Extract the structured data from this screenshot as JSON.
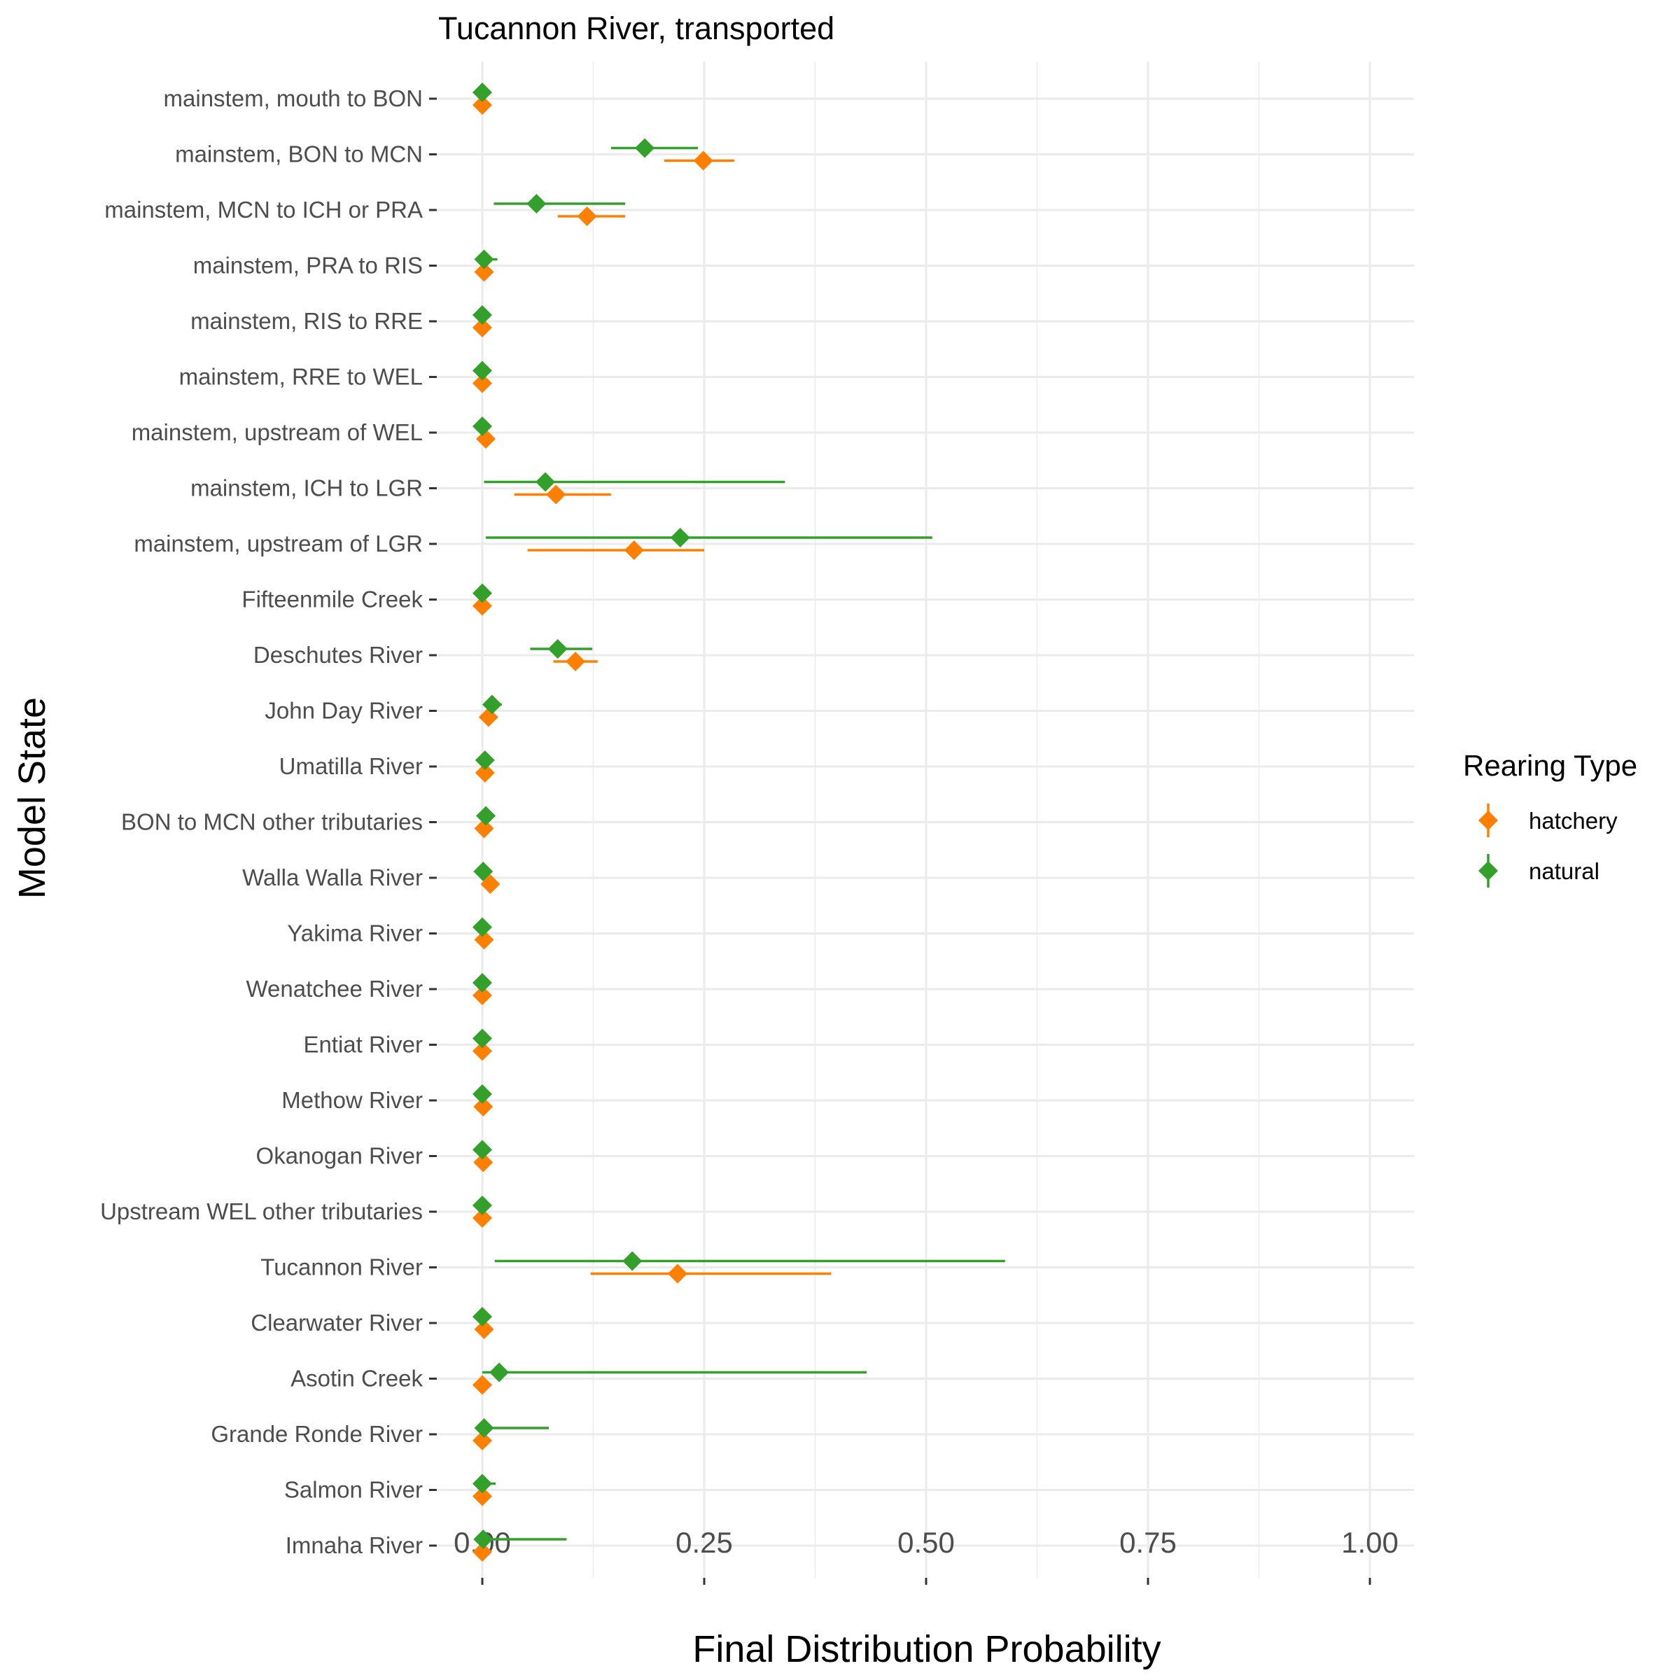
{
  "chart_data": {
    "type": "scatter",
    "title": "Tucannon River, transported",
    "xlabel": "Final Distribution Probability",
    "ylabel": "Model State",
    "xlim": [
      -0.05,
      1.05
    ],
    "x_ticks": [
      0,
      0.25,
      0.5,
      0.75,
      1
    ],
    "x_tick_labels": [
      "0.00",
      "0.25",
      "0.50",
      "0.75",
      "1.00"
    ],
    "grid": true,
    "legend": {
      "title": "Rearing Type",
      "position": "right"
    },
    "categories": [
      "mainstem, mouth to BON",
      "mainstem, BON to MCN",
      "mainstem, MCN to ICH or PRA",
      "mainstem, PRA to RIS",
      "mainstem, RIS to RRE",
      "mainstem, RRE to WEL",
      "mainstem, upstream of WEL",
      "mainstem, ICH to LGR",
      "mainstem, upstream of LGR",
      "Fifteenmile Creek",
      "Deschutes River",
      "John Day River",
      "Umatilla River",
      "BON to MCN other tributaries",
      "Walla Walla River",
      "Yakima River",
      "Wenatchee River",
      "Entiat River",
      "Methow River",
      "Okanogan River",
      "Upstream WEL other tributaries",
      "Tucannon River",
      "Clearwater River",
      "Asotin Creek",
      "Grande Ronde River",
      "Salmon River",
      "Imnaha River"
    ],
    "series": [
      {
        "name": "hatchery",
        "color": "#ff7f00",
        "values": [
          0.0,
          0.249,
          0.118,
          0.002,
          0.0,
          0.0,
          0.004,
          0.083,
          0.171,
          0.0,
          0.105,
          0.007,
          0.003,
          0.002,
          0.009,
          0.002,
          0.0,
          0.0,
          0.001,
          0.001,
          0.0,
          0.22,
          0.002,
          0.0,
          0.0,
          0.0,
          0.0
        ],
        "lower": [
          0.0,
          0.205,
          0.085,
          0.0,
          0.0,
          0.0,
          0.0,
          0.036,
          0.051,
          0.0,
          0.08,
          0.0,
          0.0,
          0.0,
          0.0,
          0.0,
          0.0,
          0.0,
          0.0,
          0.0,
          0.0,
          0.122,
          0.0,
          0.0,
          0.0,
          0.0,
          0.0
        ],
        "upper": [
          0.0,
          0.284,
          0.161,
          0.005,
          0.0,
          0.0,
          0.008,
          0.145,
          0.25,
          0.0,
          0.13,
          0.014,
          0.006,
          0.005,
          0.016,
          0.004,
          0.0,
          0.0,
          0.002,
          0.002,
          0.0,
          0.393,
          0.004,
          0.0,
          0.0,
          0.0,
          0.0
        ]
      },
      {
        "name": "natural",
        "color": "#33a02c",
        "values": [
          0.0,
          0.183,
          0.061,
          0.002,
          0.0,
          0.0,
          0.0,
          0.071,
          0.223,
          0.0,
          0.085,
          0.011,
          0.003,
          0.004,
          0.001,
          0.0,
          0.0,
          0.0,
          0.0,
          0.0,
          0.0,
          0.169,
          0.0,
          0.019,
          0.002,
          0.0,
          0.001
        ],
        "lower": [
          0.0,
          0.145,
          0.013,
          0.0,
          0.0,
          0.0,
          0.0,
          0.002,
          0.004,
          0.0,
          0.054,
          0.002,
          0.0,
          0.0,
          0.0,
          0.0,
          0.0,
          0.0,
          0.0,
          0.0,
          0.0,
          0.014,
          0.0,
          0.0,
          0.0,
          0.0,
          0.0
        ],
        "upper": [
          0.0,
          0.243,
          0.161,
          0.017,
          0.0,
          0.0,
          0.0,
          0.341,
          0.507,
          0.0,
          0.124,
          0.022,
          0.007,
          0.01,
          0.003,
          0.0,
          0.0,
          0.0,
          0.0,
          0.0,
          0.0,
          0.589,
          0.0,
          0.433,
          0.075,
          0.015,
          0.095
        ]
      }
    ]
  }
}
